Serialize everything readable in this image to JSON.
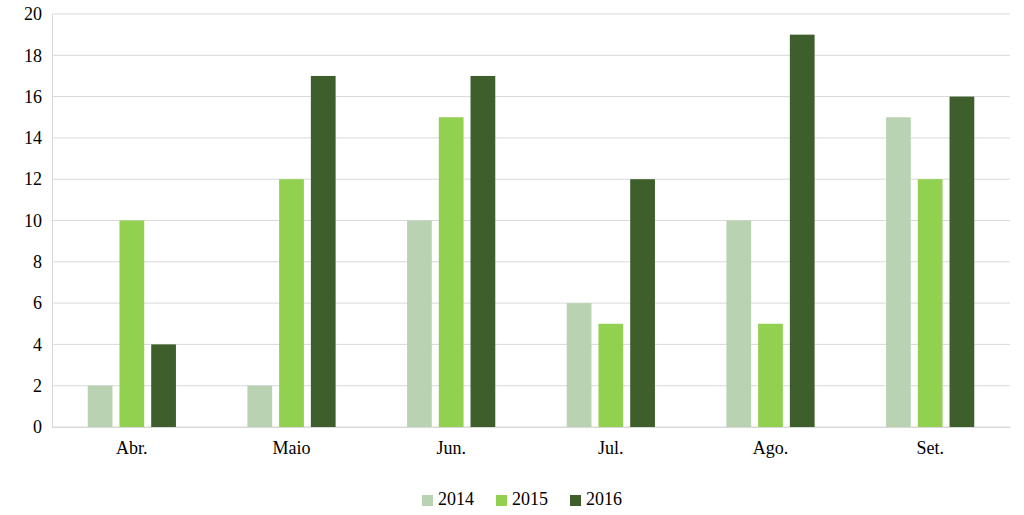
{
  "chart_data": {
    "type": "bar",
    "categories": [
      "Abr.",
      "Maio",
      "Jun.",
      "Jul.",
      "Ago.",
      "Set."
    ],
    "series": [
      {
        "name": "2014",
        "color": "#b9d3b2",
        "values": [
          2,
          2,
          10,
          6,
          10,
          15
        ]
      },
      {
        "name": "2015",
        "color": "#92d050",
        "values": [
          10,
          12,
          15,
          5,
          5,
          12
        ]
      },
      {
        "name": "2016",
        "color": "#3e5f2c",
        "values": [
          4,
          17,
          17,
          12,
          19,
          16
        ]
      }
    ],
    "ylim": [
      0,
      20
    ],
    "yticks": [
      0,
      2,
      4,
      6,
      8,
      10,
      12,
      14,
      16,
      18,
      20
    ],
    "grid": true,
    "legend": "bottom"
  }
}
